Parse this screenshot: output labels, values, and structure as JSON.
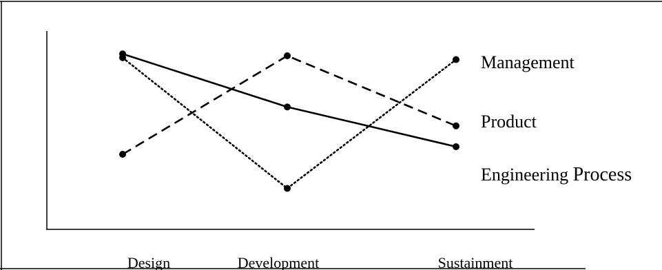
{
  "chart_data": {
    "type": "line",
    "categories": [
      "Design",
      "Development",
      "Sustainment"
    ],
    "ylim": [
      0,
      10
    ],
    "grid": false,
    "series": [
      {
        "name": "Management",
        "style": "dotted",
        "values": [
          7.5,
          0.6,
          7.4
        ]
      },
      {
        "name": "Product",
        "style": "dashed",
        "values": [
          2.4,
          7.6,
          3.9
        ]
      },
      {
        "name": "Engineering Process",
        "name_parts": [
          "Engineering ",
          "Process"
        ],
        "style": "solid",
        "values": [
          7.7,
          4.9,
          2.8
        ]
      }
    ],
    "colors": {
      "line": "#000000",
      "frame": "#000000"
    }
  }
}
